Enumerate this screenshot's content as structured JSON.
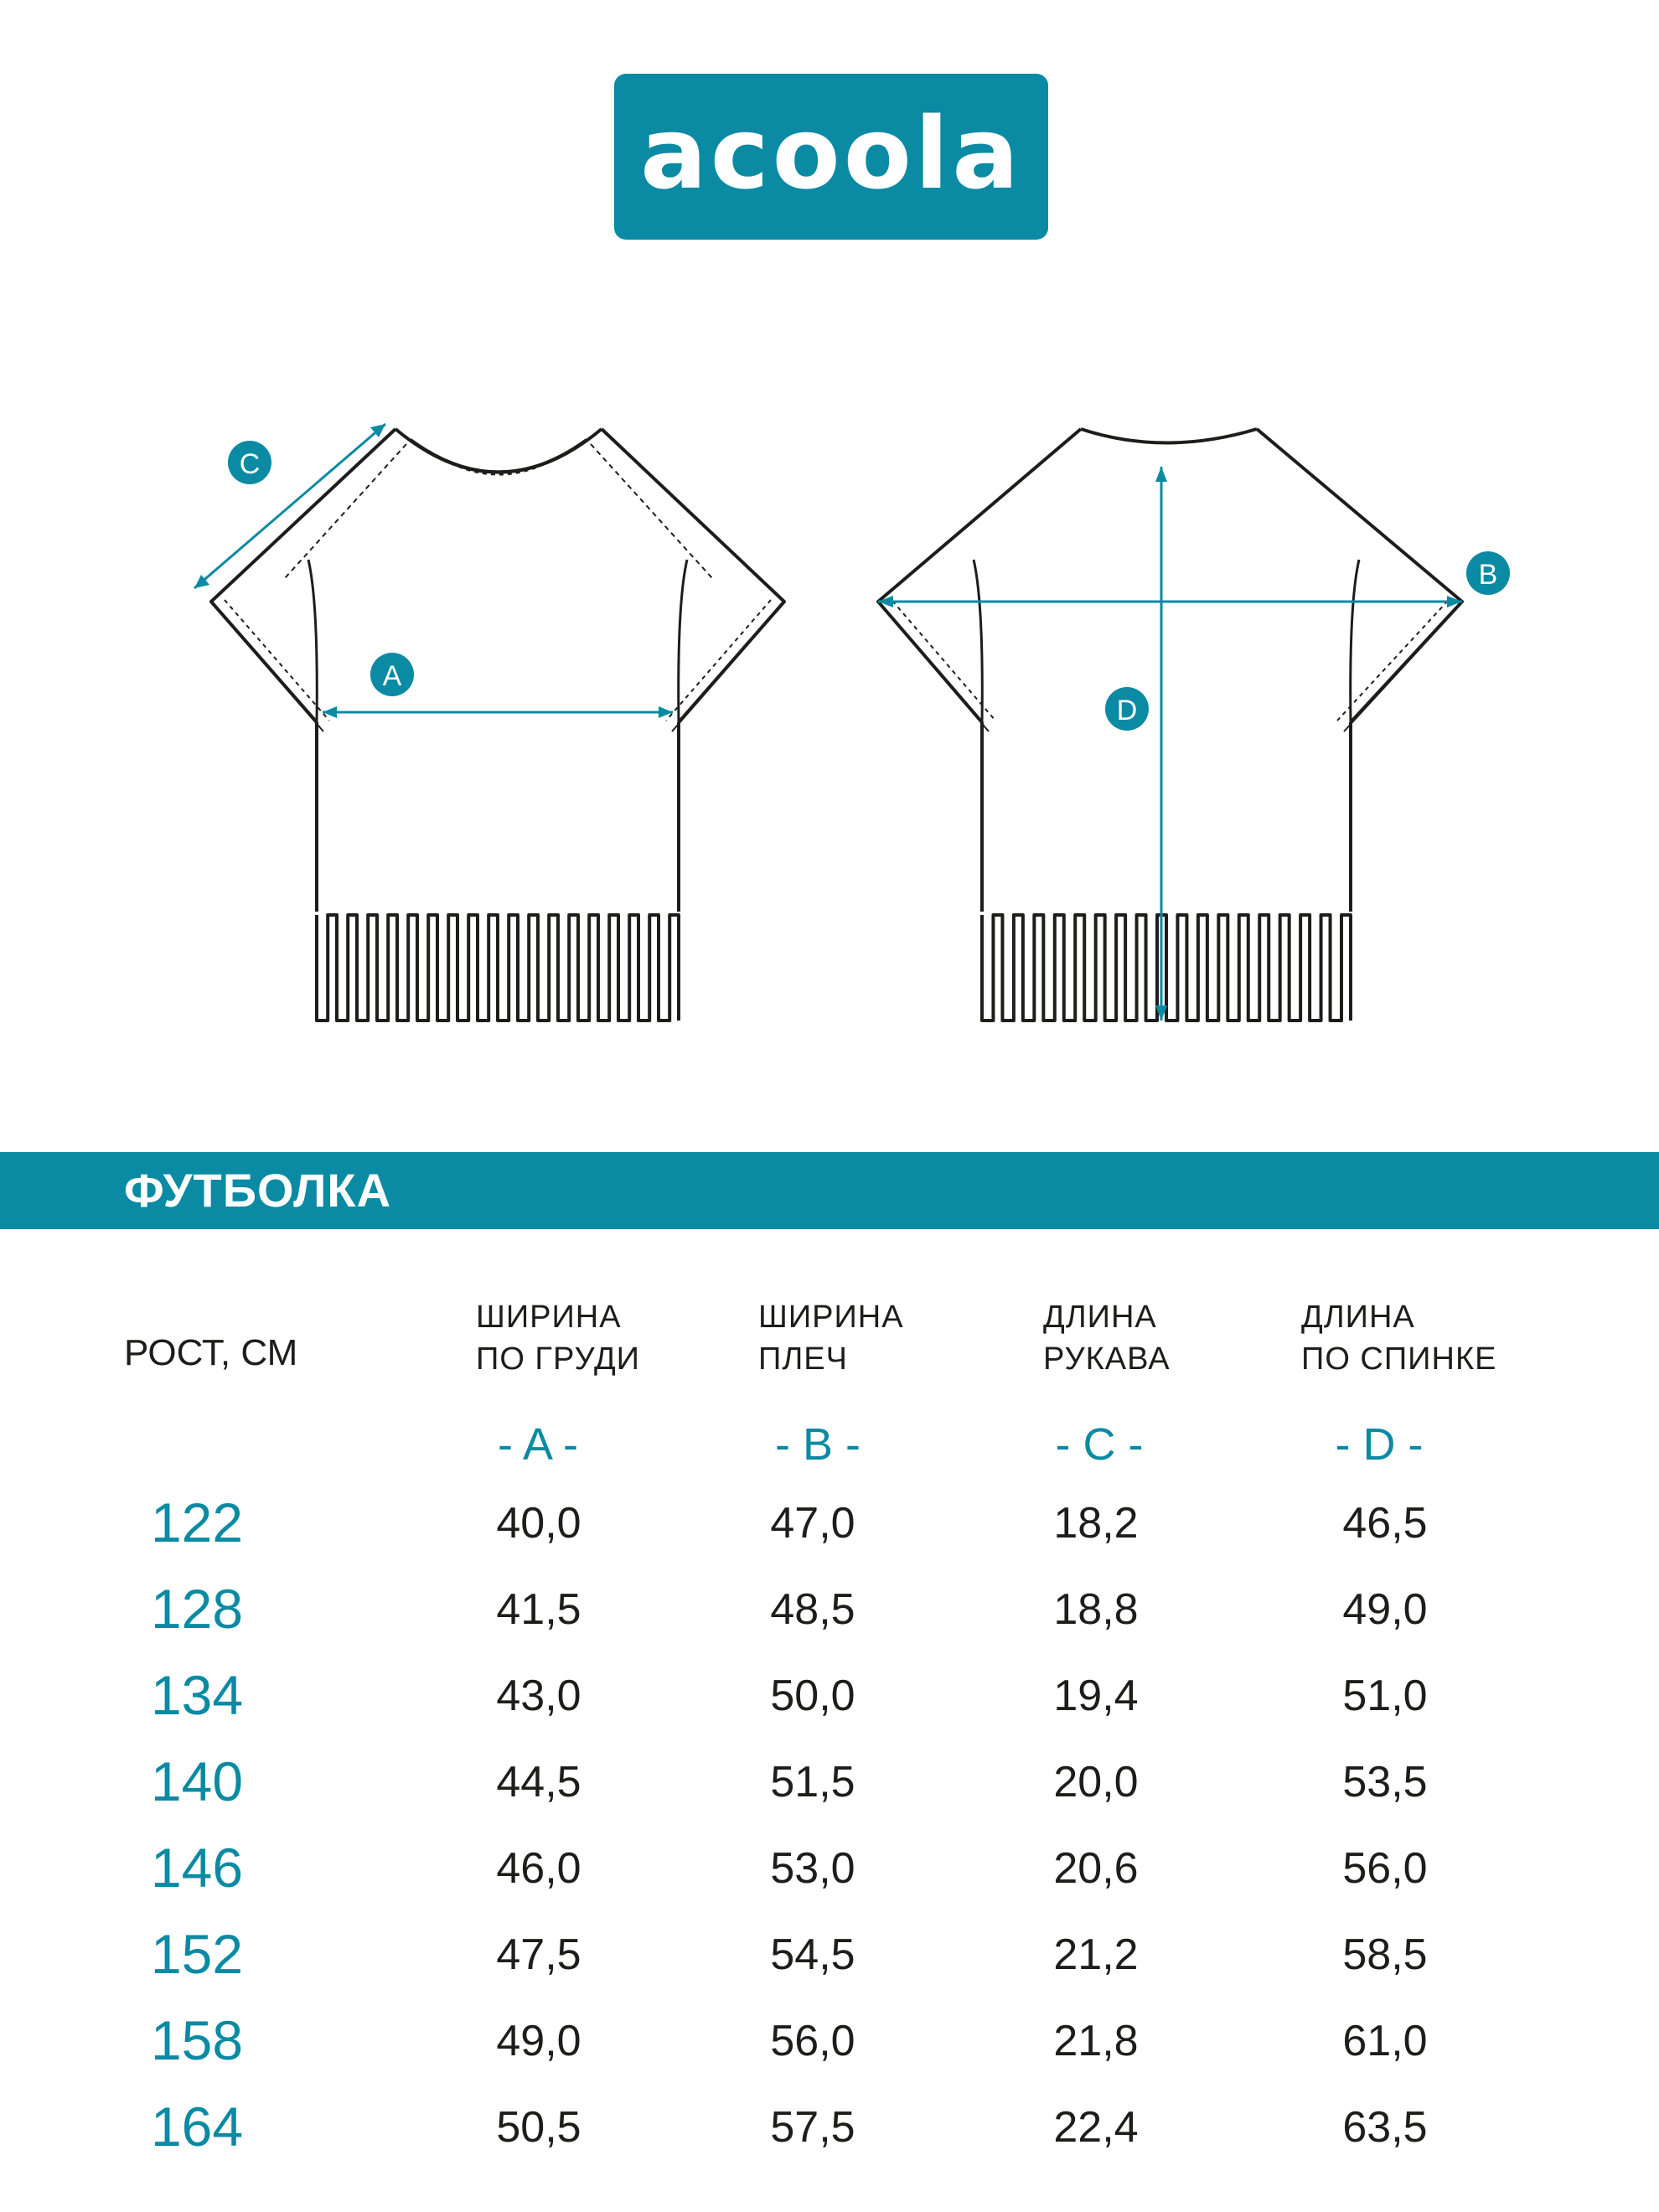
{
  "brand": {
    "logo_text": "acoola",
    "color": "#0a8aa3"
  },
  "diagram": {
    "front_labels": {
      "a": "A",
      "c": "C"
    },
    "back_labels": {
      "b": "B",
      "d": "D"
    }
  },
  "product_title": "ФУТБОЛКА",
  "table": {
    "row_header": "РОСТ, СМ",
    "columns": [
      {
        "line1": "ШИРИНА",
        "line2": "ПО ГРУДИ",
        "letter": "- A -"
      },
      {
        "line1": "ШИРИНА",
        "line2": "ПЛЕЧ",
        "letter": "- B -"
      },
      {
        "line1": "ДЛИНА",
        "line2": "РУКАВА",
        "letter": "- C -"
      },
      {
        "line1": "ДЛИНА",
        "line2": "ПО СПИНКЕ",
        "letter": "- D -"
      }
    ],
    "rows": [
      {
        "height": "122",
        "values": [
          "40,0",
          "47,0",
          "18,2",
          "46,5"
        ]
      },
      {
        "height": "128",
        "values": [
          "41,5",
          "48,5",
          "18,8",
          "49,0"
        ]
      },
      {
        "height": "134",
        "values": [
          "43,0",
          "50,0",
          "19,4",
          "51,0"
        ]
      },
      {
        "height": "140",
        "values": [
          "44,5",
          "51,5",
          "20,0",
          "53,5"
        ]
      },
      {
        "height": "146",
        "values": [
          "46,0",
          "53,0",
          "20,6",
          "56,0"
        ]
      },
      {
        "height": "152",
        "values": [
          "47,5",
          "54,5",
          "21,2",
          "58,5"
        ]
      },
      {
        "height": "158",
        "values": [
          "49,0",
          "56,0",
          "21,8",
          "61,0"
        ]
      },
      {
        "height": "164",
        "values": [
          "50,5",
          "57,5",
          "22,4",
          "63,5"
        ]
      }
    ]
  }
}
